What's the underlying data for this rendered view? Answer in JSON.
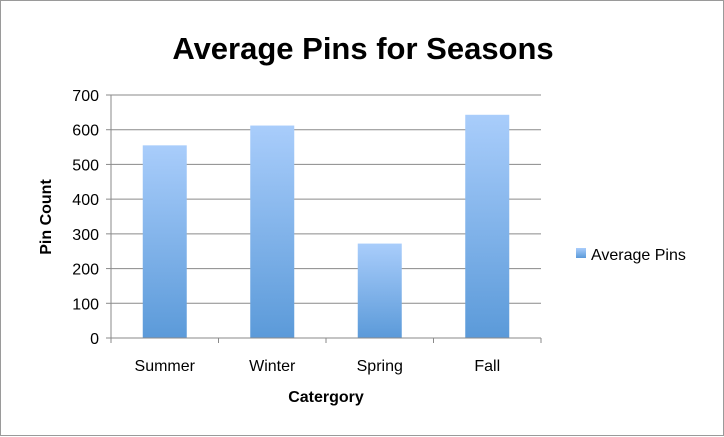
{
  "chart_data": {
    "type": "bar",
    "title": "Average Pins for Seasons",
    "xlabel": "Catergory",
    "ylabel": "Pin Count",
    "categories": [
      "Summer",
      "Winter",
      "Spring",
      "Fall"
    ],
    "series": [
      {
        "name": "Average Pins",
        "values": [
          555,
          612,
          272,
          643
        ],
        "color_top": "#a9cdfb",
        "color_bottom": "#5b9ad9"
      }
    ],
    "ylim": [
      0,
      700
    ],
    "yticks": [
      0,
      100,
      200,
      300,
      400,
      500,
      600,
      700
    ],
    "grid": true,
    "legend": "right"
  }
}
